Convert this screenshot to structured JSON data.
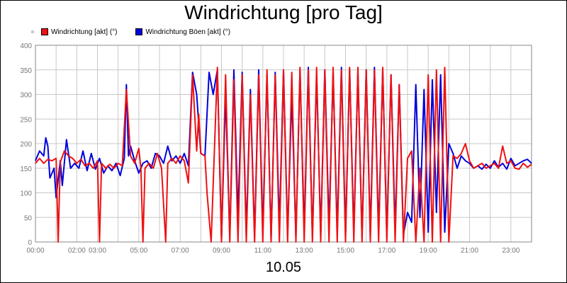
{
  "chart_data": {
    "type": "line",
    "title": "Windrichtung [pro Tag]",
    "xlabel": "10.05",
    "ylabel": "",
    "ylim": [
      0,
      400
    ],
    "yticks": [
      0,
      50,
      100,
      150,
      200,
      250,
      300,
      350,
      400
    ],
    "xlim": [
      0,
      24
    ],
    "xticks": [
      {
        "h": 0,
        "label": "00:00"
      },
      {
        "h": 2,
        "label": "02:00"
      },
      {
        "h": 3,
        "label": "03:00"
      },
      {
        "h": 5,
        "label": "05:00"
      },
      {
        "h": 7,
        "label": "07:00"
      },
      {
        "h": 9,
        "label": "09:00"
      },
      {
        "h": 11,
        "label": "11:00"
      },
      {
        "h": 13,
        "label": "13:00"
      },
      {
        "h": 15,
        "label": "15:00"
      },
      {
        "h": 17,
        "label": "17:00"
      },
      {
        "h": 19,
        "label": "19:00"
      },
      {
        "h": 21,
        "label": "21:00"
      },
      {
        "h": 23,
        "label": "23:00"
      }
    ],
    "grid": true,
    "legend_position": "top-left",
    "series": [
      {
        "name": "Windrichtung [akt] (°)",
        "color": "#ee1111",
        "points": [
          [
            0,
            160
          ],
          [
            0.2,
            170
          ],
          [
            0.4,
            160
          ],
          [
            0.6,
            168
          ],
          [
            0.8,
            165
          ],
          [
            1,
            170
          ],
          [
            1.1,
            0
          ],
          [
            1.2,
            162
          ],
          [
            1.4,
            185
          ],
          [
            1.6,
            175
          ],
          [
            1.8,
            170
          ],
          [
            2,
            160
          ],
          [
            2.2,
            168
          ],
          [
            2.4,
            155
          ],
          [
            2.6,
            160
          ],
          [
            2.8,
            150
          ],
          [
            3.0,
            165
          ],
          [
            3.1,
            0
          ],
          [
            3.2,
            160
          ],
          [
            3.4,
            150
          ],
          [
            3.6,
            158
          ],
          [
            3.8,
            150
          ],
          [
            4,
            160
          ],
          [
            4.2,
            155
          ],
          [
            4.4,
            310
          ],
          [
            4.6,
            175
          ],
          [
            4.8,
            160
          ],
          [
            5.0,
            190
          ],
          [
            5.1,
            150
          ],
          [
            5.2,
            0
          ],
          [
            5.3,
            150
          ],
          [
            5.5,
            160
          ],
          [
            5.7,
            150
          ],
          [
            5.9,
            180
          ],
          [
            6.1,
            150
          ],
          [
            6.3,
            0
          ],
          [
            6.4,
            160
          ],
          [
            6.6,
            170
          ],
          [
            6.8,
            160
          ],
          [
            7.0,
            175
          ],
          [
            7.2,
            165
          ],
          [
            7.4,
            120
          ],
          [
            7.6,
            340
          ],
          [
            7.8,
            185
          ],
          [
            7.9,
            260
          ],
          [
            8.0,
            180
          ],
          [
            8.2,
            175
          ],
          [
            8.3,
            100
          ],
          [
            8.5,
            0
          ],
          [
            8.8,
            355
          ],
          [
            9.0,
            0
          ],
          [
            9.2,
            340
          ],
          [
            9.4,
            0
          ],
          [
            9.6,
            330
          ],
          [
            9.8,
            0
          ],
          [
            10.0,
            340
          ],
          [
            10.2,
            0
          ],
          [
            10.4,
            300
          ],
          [
            10.6,
            0
          ],
          [
            10.8,
            340
          ],
          [
            11.0,
            0
          ],
          [
            11.2,
            350
          ],
          [
            11.4,
            0
          ],
          [
            11.6,
            340
          ],
          [
            11.8,
            0
          ],
          [
            12.0,
            350
          ],
          [
            12.2,
            0
          ],
          [
            12.4,
            345
          ],
          [
            12.6,
            0
          ],
          [
            12.8,
            355
          ],
          [
            13.0,
            0
          ],
          [
            13.2,
            350
          ],
          [
            13.4,
            0
          ],
          [
            13.6,
            355
          ],
          [
            13.8,
            0
          ],
          [
            14.0,
            350
          ],
          [
            14.2,
            0
          ],
          [
            14.4,
            355
          ],
          [
            14.6,
            0
          ],
          [
            14.8,
            350
          ],
          [
            15.0,
            0
          ],
          [
            15.2,
            355
          ],
          [
            15.4,
            0
          ],
          [
            15.6,
            355
          ],
          [
            15.8,
            0
          ],
          [
            16.0,
            350
          ],
          [
            16.2,
            0
          ],
          [
            16.4,
            350
          ],
          [
            16.6,
            0
          ],
          [
            16.8,
            355
          ],
          [
            17.0,
            0
          ],
          [
            17.2,
            340
          ],
          [
            17.4,
            0
          ],
          [
            17.6,
            320
          ],
          [
            17.8,
            0
          ],
          [
            18.0,
            170
          ],
          [
            18.2,
            185
          ],
          [
            18.4,
            0
          ],
          [
            18.6,
            150
          ],
          [
            18.8,
            0
          ],
          [
            19.0,
            340
          ],
          [
            19.2,
            0
          ],
          [
            19.4,
            350
          ],
          [
            19.6,
            0
          ],
          [
            19.8,
            355
          ],
          [
            20.0,
            0
          ],
          [
            20.2,
            175
          ],
          [
            20.4,
            170
          ],
          [
            20.6,
            180
          ],
          [
            20.8,
            200
          ],
          [
            21.0,
            165
          ],
          [
            21.2,
            150
          ],
          [
            21.4,
            155
          ],
          [
            21.6,
            160
          ],
          [
            21.8,
            150
          ],
          [
            22.0,
            155
          ],
          [
            22.2,
            160
          ],
          [
            22.4,
            150
          ],
          [
            22.6,
            195
          ],
          [
            22.8,
            160
          ],
          [
            23.0,
            165
          ],
          [
            23.2,
            150
          ],
          [
            23.4,
            148
          ],
          [
            23.6,
            160
          ],
          [
            23.8,
            152
          ],
          [
            24,
            158
          ]
        ]
      },
      {
        "name": "Windrichtung Böen [akt] (°)",
        "color": "#0000dd",
        "points": [
          [
            0,
            165
          ],
          [
            0.2,
            185
          ],
          [
            0.4,
            175
          ],
          [
            0.5,
            212
          ],
          [
            0.6,
            195
          ],
          [
            0.7,
            130
          ],
          [
            0.9,
            150
          ],
          [
            1.0,
            90
          ],
          [
            1.2,
            165
          ],
          [
            1.3,
            115
          ],
          [
            1.5,
            208
          ],
          [
            1.7,
            150
          ],
          [
            1.9,
            160
          ],
          [
            2.1,
            150
          ],
          [
            2.3,
            185
          ],
          [
            2.5,
            145
          ],
          [
            2.7,
            180
          ],
          [
            2.9,
            148
          ],
          [
            3.1,
            170
          ],
          [
            3.3,
            140
          ],
          [
            3.5,
            155
          ],
          [
            3.7,
            145
          ],
          [
            3.9,
            160
          ],
          [
            4.1,
            135
          ],
          [
            4.3,
            170
          ],
          [
            4.4,
            320
          ],
          [
            4.5,
            175
          ],
          [
            4.6,
            195
          ],
          [
            4.8,
            165
          ],
          [
            5.0,
            140
          ],
          [
            5.2,
            160
          ],
          [
            5.4,
            165
          ],
          [
            5.6,
            150
          ],
          [
            5.8,
            180
          ],
          [
            6.0,
            175
          ],
          [
            6.2,
            160
          ],
          [
            6.4,
            195
          ],
          [
            6.6,
            165
          ],
          [
            6.8,
            175
          ],
          [
            7.0,
            160
          ],
          [
            7.2,
            180
          ],
          [
            7.4,
            155
          ],
          [
            7.6,
            345
          ],
          [
            7.8,
            300
          ],
          [
            8.0,
            180
          ],
          [
            8.2,
            175
          ],
          [
            8.4,
            345
          ],
          [
            8.6,
            300
          ],
          [
            8.8,
            350
          ],
          [
            9.0,
            5
          ],
          [
            9.2,
            300
          ],
          [
            9.4,
            10
          ],
          [
            9.6,
            350
          ],
          [
            9.8,
            50
          ],
          [
            10.0,
            345
          ],
          [
            10.2,
            20
          ],
          [
            10.4,
            310
          ],
          [
            10.6,
            10
          ],
          [
            10.8,
            350
          ],
          [
            11.0,
            20
          ],
          [
            11.2,
            340
          ],
          [
            11.4,
            5
          ],
          [
            11.6,
            345
          ],
          [
            11.8,
            30
          ],
          [
            12.0,
            350
          ],
          [
            12.2,
            15
          ],
          [
            12.4,
            300
          ],
          [
            12.6,
            10
          ],
          [
            12.8,
            350
          ],
          [
            13.0,
            20
          ],
          [
            13.2,
            355
          ],
          [
            13.4,
            10
          ],
          [
            13.6,
            340
          ],
          [
            13.8,
            15
          ],
          [
            14.0,
            350
          ],
          [
            14.2,
            30
          ],
          [
            14.4,
            345
          ],
          [
            14.6,
            20
          ],
          [
            14.8,
            355
          ],
          [
            15.0,
            15
          ],
          [
            15.2,
            350
          ],
          [
            15.4,
            20
          ],
          [
            15.6,
            345
          ],
          [
            15.8,
            10
          ],
          [
            16.0,
            350
          ],
          [
            16.2,
            15
          ],
          [
            16.4,
            355
          ],
          [
            16.6,
            20
          ],
          [
            16.8,
            350
          ],
          [
            17.0,
            10
          ],
          [
            17.2,
            340
          ],
          [
            17.4,
            25
          ],
          [
            17.6,
            320
          ],
          [
            17.8,
            15
          ],
          [
            18.0,
            60
          ],
          [
            18.2,
            40
          ],
          [
            18.4,
            320
          ],
          [
            18.6,
            50
          ],
          [
            18.8,
            310
          ],
          [
            19.0,
            20
          ],
          [
            19.2,
            330
          ],
          [
            19.4,
            60
          ],
          [
            19.6,
            340
          ],
          [
            19.8,
            20
          ],
          [
            20.0,
            200
          ],
          [
            20.2,
            180
          ],
          [
            20.4,
            150
          ],
          [
            20.6,
            175
          ],
          [
            20.8,
            165
          ],
          [
            21.0,
            160
          ],
          [
            21.2,
            150
          ],
          [
            21.4,
            155
          ],
          [
            21.6,
            148
          ],
          [
            21.8,
            158
          ],
          [
            22.0,
            150
          ],
          [
            22.2,
            165
          ],
          [
            22.4,
            152
          ],
          [
            22.6,
            160
          ],
          [
            22.8,
            148
          ],
          [
            23.0,
            170
          ],
          [
            23.2,
            155
          ],
          [
            23.4,
            160
          ],
          [
            23.6,
            165
          ],
          [
            23.8,
            168
          ],
          [
            24,
            160
          ]
        ]
      }
    ]
  }
}
